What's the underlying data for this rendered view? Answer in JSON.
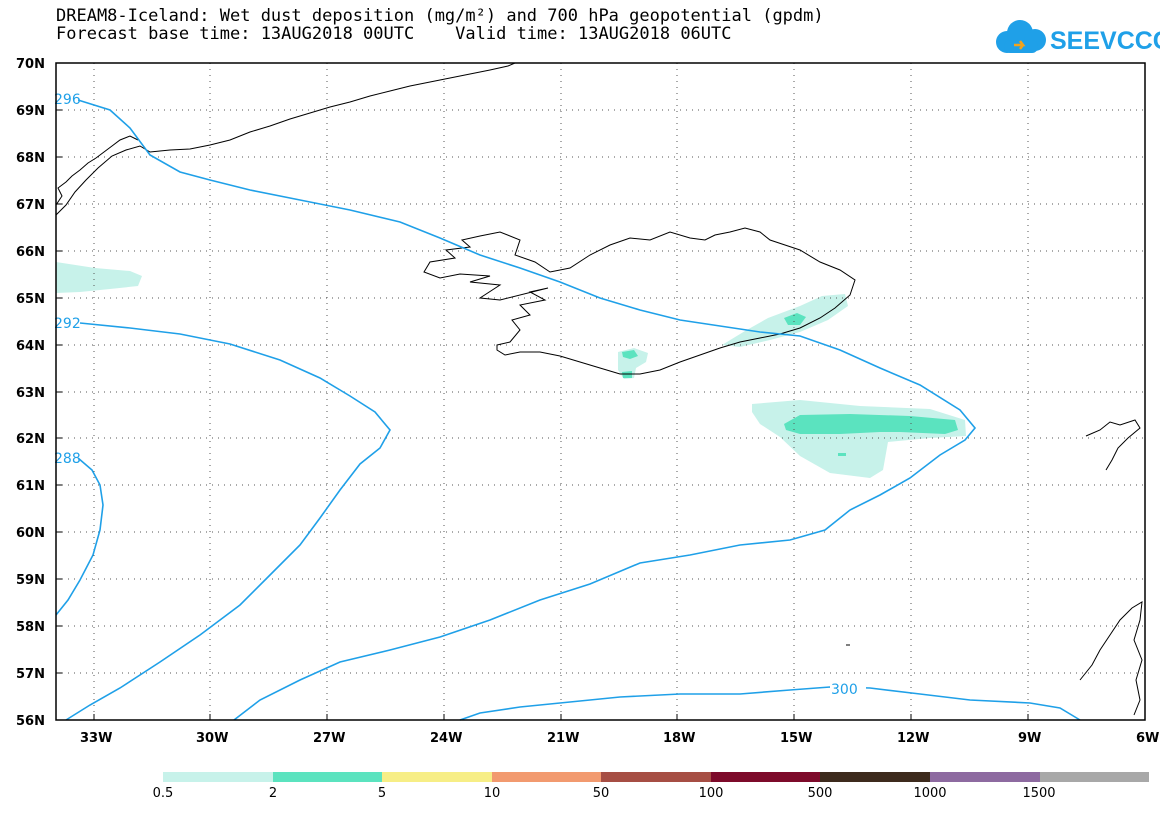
{
  "title_line1": "DREAM8-Iceland: Wet dust deposition (mg/m²) and 700 hPa geopotential (gpdm)",
  "title_line2": "Forecast base time: 13AUG2018 00UTC    Valid time: 13AUG2018 06UTC",
  "logo_text": "SEEVCCC",
  "logo_icon": "cloud-icon",
  "lat_labels": [
    "70N",
    "69N",
    "68N",
    "67N",
    "66N",
    "65N",
    "64N",
    "63N",
    "62N",
    "61N",
    "60N",
    "59N",
    "58N",
    "57N",
    "56N"
  ],
  "lon_labels": [
    "33W",
    "30W",
    "27W",
    "24W",
    "21W",
    "18W",
    "15W",
    "12W",
    "9W",
    "6W"
  ],
  "contour_labels": [
    "296",
    "292",
    "288",
    "300"
  ],
  "legend": {
    "values": [
      "0.5",
      "2",
      "5",
      "10",
      "50",
      "100",
      "500",
      "1000",
      "1500"
    ],
    "colors": [
      "#c7f2ea",
      "#5be3bf",
      "#f7ee86",
      "#f29a6f",
      "#a64e44",
      "#7d0a2a",
      "#3d2a1d",
      "#8d6aa0",
      "#a8a8a8"
    ]
  },
  "colors": {
    "contour": "#1fa0e8",
    "land": "#000000"
  }
}
